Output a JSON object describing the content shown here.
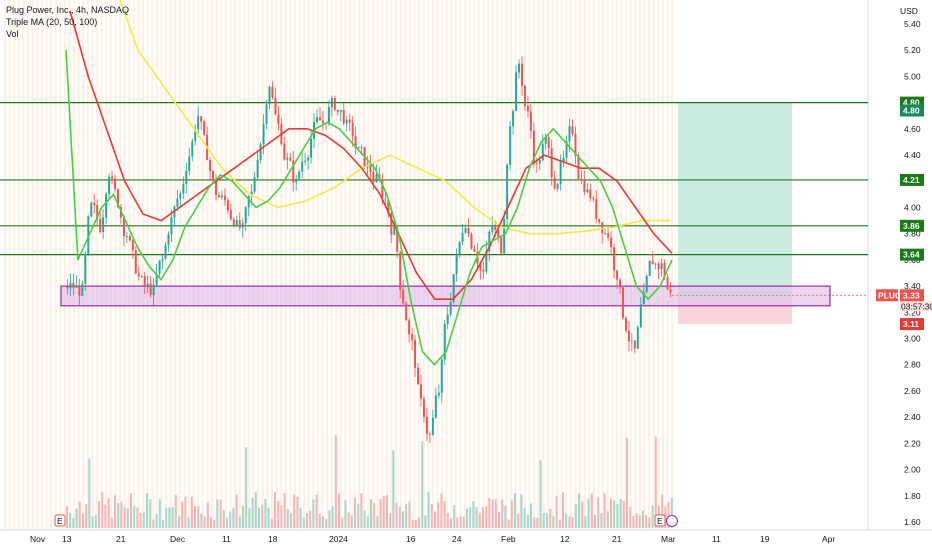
{
  "legend": {
    "symbol": "Plug Power, Inc., 4h, NASDAQ",
    "ma": "Triple MA (20, 50, 100)",
    "vol": "Vol"
  },
  "currency": "USD",
  "chart_data": {
    "type": "candlestick",
    "ylim": [
      1.5,
      5.5
    ],
    "price_ticks": [
      "5.40",
      "5.20",
      "5.00",
      "4.80",
      "4.60",
      "4.40",
      "4.20",
      "4.00",
      "3.80",
      "3.60",
      "3.40",
      "3.20",
      "3.00",
      "2.80",
      "2.60",
      "2.40",
      "2.20",
      "2.00",
      "1.80",
      "1.60"
    ],
    "time_ticks": [
      "Nov",
      "13",
      "21",
      "Dec",
      "11",
      "18",
      "2024",
      "16",
      "24",
      "Feb",
      "12",
      "21",
      "Mar",
      "11",
      "19",
      "Apr"
    ],
    "horizontal_levels": [
      4.8,
      4.21,
      3.86,
      3.64
    ],
    "level_labels": [
      "4.80",
      "4.80",
      "4.21",
      "3.86",
      "3.64"
    ],
    "support_zone": {
      "low": 3.25,
      "high": 3.4
    },
    "position": {
      "entry": 3.3,
      "target": 4.8,
      "stop": 3.11
    },
    "current_price": {
      "symbol": "PLUG",
      "value": "3.33",
      "countdown": "03:57:30"
    },
    "price_tags": {
      "entry": "3.30",
      "stop": "3.11"
    },
    "event_markers": [
      "E",
      "E"
    ],
    "close_series": [
      3.4,
      3.36,
      4.0,
      3.86,
      4.28,
      4.05,
      3.8,
      3.55,
      3.4,
      3.36,
      3.6,
      3.9,
      4.1,
      4.4,
      4.7,
      4.42,
      4.12,
      4.05,
      3.92,
      3.82,
      4.1,
      4.5,
      4.95,
      4.62,
      4.35,
      4.18,
      4.4,
      4.6,
      4.65,
      4.78,
      4.72,
      4.6,
      4.42,
      4.3,
      4.2,
      4.05,
      3.8,
      3.3,
      2.95,
      2.5,
      2.25,
      2.6,
      3.2,
      3.6,
      3.9,
      3.7,
      3.5,
      3.86,
      3.7,
      4.6,
      5.1,
      4.7,
      4.3,
      4.5,
      4.2,
      4.35,
      4.6,
      4.2,
      4.1,
      3.9,
      3.8,
      3.5,
      3.1,
      2.9,
      3.3,
      3.6,
      3.55,
      3.33
    ],
    "ma20": [
      5.2,
      3.6,
      3.8,
      4.0,
      4.1,
      3.9,
      3.7,
      3.55,
      3.45,
      3.6,
      3.85,
      4.0,
      4.15,
      4.25,
      4.2,
      4.1,
      4.0,
      4.05,
      4.15,
      4.3,
      4.45,
      4.6,
      4.65,
      4.6,
      4.5,
      4.4,
      4.3,
      4.1,
      3.8,
      3.3,
      2.9,
      2.8,
      2.9,
      3.2,
      3.5,
      3.7,
      3.75,
      3.8,
      4.0,
      4.3,
      4.5,
      4.6,
      4.5,
      4.4,
      4.3,
      4.2,
      4.0,
      3.7,
      3.4,
      3.3,
      3.4,
      3.6
    ],
    "ma50": [
      5.5,
      5.0,
      4.6,
      4.2,
      3.95,
      3.9,
      4.0,
      4.1,
      4.2,
      4.3,
      4.4,
      4.5,
      4.6,
      4.6,
      4.55,
      4.45,
      4.3,
      4.1,
      3.8,
      3.5,
      3.3,
      3.3,
      3.45,
      3.7,
      4.0,
      4.3,
      4.4,
      4.35,
      4.3,
      4.3,
      4.2,
      4.0,
      3.8,
      3.65
    ],
    "ma100": [
      5.8,
      5.2,
      4.9,
      4.6,
      4.3,
      4.1,
      4.0,
      4.05,
      4.15,
      4.3,
      4.4,
      4.3,
      4.2,
      4.0,
      3.85,
      3.8,
      3.8,
      3.82,
      3.85,
      3.9,
      3.9
    ]
  }
}
